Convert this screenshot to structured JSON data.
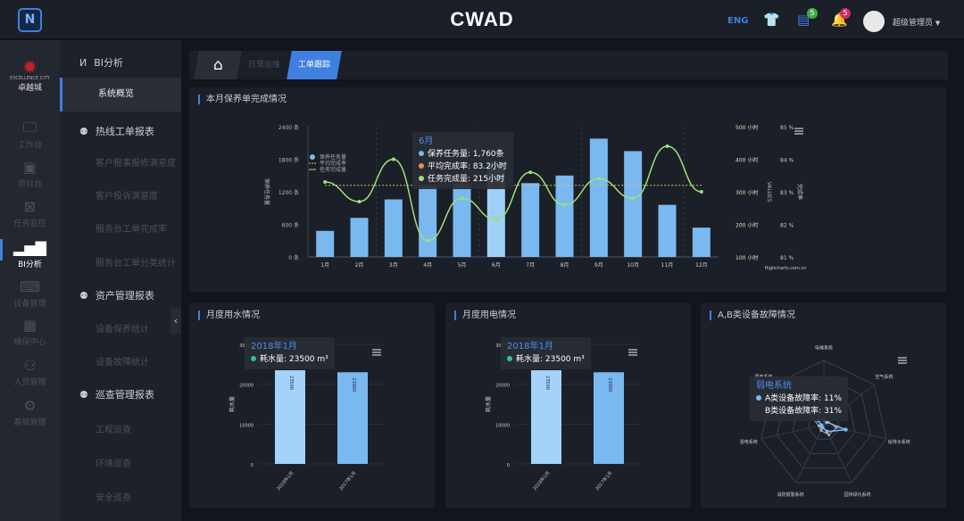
{
  "header": {
    "logo_mark": "N",
    "brand": "CWAD",
    "lang": "ENG",
    "messages_count": "5",
    "alerts_count": "5",
    "username": "超级管理员",
    "caret": "▼"
  },
  "rail": {
    "org_name": "卓越城",
    "org_sub": "EXCELLENCE CITY",
    "items": [
      {
        "label": "工作台",
        "icon": "monitor-icon"
      },
      {
        "label": "项目台",
        "icon": "screen-icon"
      },
      {
        "label": "任务监控",
        "icon": "task-icon"
      },
      {
        "label": "BI分析",
        "icon": "bar-chart-icon"
      },
      {
        "label": "设备管理",
        "icon": "device-icon"
      },
      {
        "label": "维保中心",
        "icon": "calendar-icon"
      },
      {
        "label": "人员管理",
        "icon": "people-icon"
      },
      {
        "label": "基础管理",
        "icon": "gear-icon"
      }
    ]
  },
  "submenu": {
    "title": "BI分析",
    "active": "系统概览",
    "groups": [
      {
        "label": "热线工单报表",
        "items": [
          "客户报事报修满意度",
          "客户投诉满意度",
          "服务台工单完成率",
          "服务台工单分类统计"
        ]
      },
      {
        "label": "资产管理报表",
        "items": [
          "设备保养统计",
          "设备故障统计"
        ]
      },
      {
        "label": "巡查管理报表",
        "items": [
          "工程巡查",
          "环境巡查",
          "安全巡查"
        ]
      }
    ]
  },
  "tabs": [
    {
      "label": "日常运维"
    },
    {
      "label": "工单跟踪",
      "active": true
    }
  ],
  "colors": {
    "accent": "#3f7fe0",
    "bar": "#7ab8f0",
    "line": "#9de07a",
    "avg": "#e09050"
  },
  "chart_data": [
    {
      "type": "bar",
      "title": "本月保养单完成情况",
      "categories": [
        "1月",
        "2月",
        "3月",
        "4月",
        "5月",
        "6月",
        "7月",
        "8月",
        "9月",
        "10月",
        "11月",
        "12月"
      ],
      "series": [
        {
          "name": "保养任务量",
          "type": "bar",
          "axis": "left",
          "values": [
            480,
            720,
            1060,
            1320,
            1360,
            1760,
            1360,
            1500,
            2180,
            1950,
            960,
            540
          ]
        },
        {
          "name": "任务完成量",
          "type": "line",
          "axis": "right",
          "values": [
            330,
            270,
            400,
            150,
            280,
            215,
            360,
            260,
            340,
            280,
            440,
            300
          ]
        },
        {
          "name": "平均完成率",
          "type": "line",
          "axis": "percent",
          "values": [
            83.2,
            83.2,
            83.2,
            83.2,
            83.2,
            83.2,
            83.2,
            83.2,
            83.2,
            83.2,
            83.2,
            83.2
          ]
        }
      ],
      "yleft": {
        "ticks": [
          "0 条",
          "600 条",
          "1200 条",
          "1800 条",
          "2400 条"
        ],
        "range": [
          0,
          2400
        ],
        "label": "保养任务量"
      },
      "yright": {
        "ticks": [
          "100 小时",
          "200 小时",
          "300 小时",
          "400 小时",
          "500 小时"
        ],
        "range": [
          100,
          500
        ],
        "label": "VALUES"
      },
      "ypercent": {
        "ticks": [
          "81 %",
          "82 %",
          "83 %",
          "84 %",
          "85 %"
        ],
        "range": [
          81,
          85
        ],
        "label": "完成率"
      },
      "credit": "Highcharts.com.cn",
      "tooltip": {
        "title": "6月",
        "rows": [
          "保养任务量: 1,760条",
          "平均完成率: 83.2小时",
          "任务完成量: 215小时"
        ]
      }
    },
    {
      "type": "bar",
      "title": "月度用水情况",
      "categories": [
        "2018年1月",
        "2017年1月"
      ],
      "values": [
        23500,
        23000
      ],
      "ylim": [
        0,
        30000
      ],
      "ticks": [
        "0",
        "10000",
        "20000",
        "30000"
      ],
      "ylabel": "耗水量",
      "tooltip": {
        "title": "2018年1月",
        "row": "耗水量: 23500 m³"
      }
    },
    {
      "type": "bar",
      "title": "月度用电情况",
      "categories": [
        "2018年1月",
        "2017年1月"
      ],
      "values": [
        23500,
        23000
      ],
      "ylim": [
        0,
        30000
      ],
      "ticks": [
        "0",
        "10000",
        "20000",
        "30000"
      ],
      "ylabel": "耗水量",
      "tooltip": {
        "title": "2018年1月",
        "row": "耗水量: 23500 m³"
      }
    },
    {
      "type": "radar",
      "title": "A,B类设备故障情况",
      "categories": [
        "电梯系统",
        "空气系统",
        "给排水系统",
        "园林绿化系统",
        "消防报警系统",
        "强电系统",
        "弱电系统"
      ],
      "series": [
        {
          "name": "A类设备故障率",
          "values": [
            8,
            6,
            35,
            12,
            5,
            4,
            11
          ]
        },
        {
          "name": "B类设备故障率",
          "values": [
            10,
            8,
            20,
            18,
            10,
            8,
            31
          ]
        }
      ],
      "ylim": [
        0,
        100
      ],
      "tooltip": {
        "title": "弱电系统",
        "rows": [
          "A类设备故障率: 11%",
          "B类设备故障率: 31%"
        ]
      }
    }
  ]
}
